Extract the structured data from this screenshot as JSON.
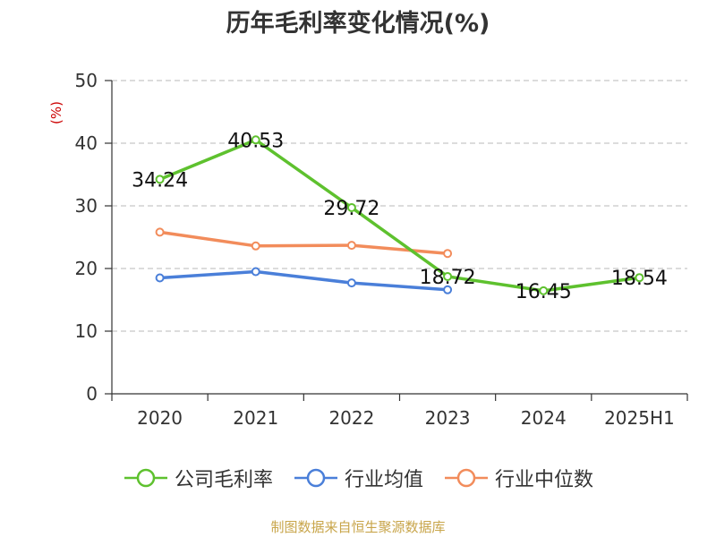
{
  "title": "历年毛利率变化情况(%)",
  "source": "制图数据来自恒生聚源数据库",
  "chart_data": {
    "type": "line",
    "title": "历年毛利率变化情况(%)",
    "ylabel": "(%)",
    "xlabel": "",
    "categories": [
      "2020",
      "2021",
      "2022",
      "2023",
      "2024",
      "2025H1"
    ],
    "ylim": [
      0,
      50
    ],
    "yticks": [
      0,
      10,
      20,
      30,
      40,
      50
    ],
    "grid": true,
    "legend_position": "bottom",
    "series": [
      {
        "name": "公司毛利率",
        "color": "#5ec12e",
        "values": [
          34.24,
          40.53,
          29.72,
          18.72,
          16.45,
          18.54
        ],
        "labels": [
          "34.24",
          "40.53",
          "29.72",
          "18.72",
          "16.45",
          "18.54"
        ]
      },
      {
        "name": "行业均值",
        "color": "#4a7fd9",
        "values": [
          18.5,
          19.5,
          17.7,
          16.6,
          null,
          null
        ]
      },
      {
        "name": "行业中位数",
        "color": "#f28c5b",
        "values": [
          25.8,
          23.6,
          23.7,
          22.4,
          null,
          null
        ]
      }
    ]
  }
}
